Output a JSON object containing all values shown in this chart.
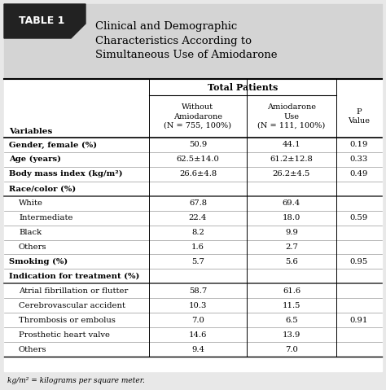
{
  "title_label": "TABLE 1",
  "title_text": "Clinical and Demographic\nCharacteristics According to\nSimultaneous Use of Amiodarone",
  "header_row2": [
    "Variables",
    "Without\nAmiodarone\n(N = 755, 100%)",
    "Amiodarone\nUse\n(N = 111, 100%)",
    "P\nValue"
  ],
  "rows": [
    {
      "label": "Gender, female (%)",
      "col1": "50.9",
      "col2": "44.1",
      "col3": "0.19",
      "bold": true,
      "indent": false,
      "section_header": false
    },
    {
      "label": "Age (years)",
      "col1": "62.5±14.0",
      "col2": "61.2±12.8",
      "col3": "0.33",
      "bold": true,
      "indent": false,
      "section_header": false
    },
    {
      "label": "Body mass index (kg/m²)",
      "col1": "26.6±4.8",
      "col2": "26.2±4.5",
      "col3": "0.49",
      "bold": true,
      "indent": false,
      "section_header": false
    },
    {
      "label": "Race/color (%)",
      "col1": "",
      "col2": "",
      "col3": "",
      "bold": true,
      "indent": false,
      "section_header": true
    },
    {
      "label": "White",
      "col1": "67.8",
      "col2": "69.4",
      "col3": "",
      "bold": false,
      "indent": true,
      "section_header": false
    },
    {
      "label": "Intermediate",
      "col1": "22.4",
      "col2": "18.0",
      "col3": "0.59",
      "bold": false,
      "indent": true,
      "section_header": false
    },
    {
      "label": "Black",
      "col1": "8.2",
      "col2": "9.9",
      "col3": "",
      "bold": false,
      "indent": true,
      "section_header": false
    },
    {
      "label": "Others",
      "col1": "1.6",
      "col2": "2.7",
      "col3": "",
      "bold": false,
      "indent": true,
      "section_header": false
    },
    {
      "label": "Smoking (%)",
      "col1": "5.7",
      "col2": "5.6",
      "col3": "0.95",
      "bold": true,
      "indent": false,
      "section_header": false
    },
    {
      "label": "Indication for treatment (%)",
      "col1": "",
      "col2": "",
      "col3": "",
      "bold": true,
      "indent": false,
      "section_header": true
    },
    {
      "label": "Atrial fibrillation or flutter",
      "col1": "58.7",
      "col2": "61.6",
      "col3": "",
      "bold": false,
      "indent": true,
      "section_header": false
    },
    {
      "label": "Cerebrovascular accident",
      "col1": "10.3",
      "col2": "11.5",
      "col3": "",
      "bold": false,
      "indent": true,
      "section_header": false
    },
    {
      "label": "Thrombosis or embolus",
      "col1": "7.0",
      "col2": "6.5",
      "col3": "0.91",
      "bold": false,
      "indent": true,
      "section_header": false
    },
    {
      "label": "Prosthetic heart valve",
      "col1": "14.6",
      "col2": "13.9",
      "col3": "",
      "bold": false,
      "indent": true,
      "section_header": false
    },
    {
      "label": "Others",
      "col1": "9.4",
      "col2": "7.0",
      "col3": "",
      "bold": false,
      "indent": true,
      "section_header": false
    }
  ],
  "footnote": "kg/m² = kilograms per square meter.",
  "bg_color": "#e8e8e8",
  "table_bg": "#ffffff",
  "title_bg": "#d0d0d0",
  "label_bg": "#1a1a1a"
}
